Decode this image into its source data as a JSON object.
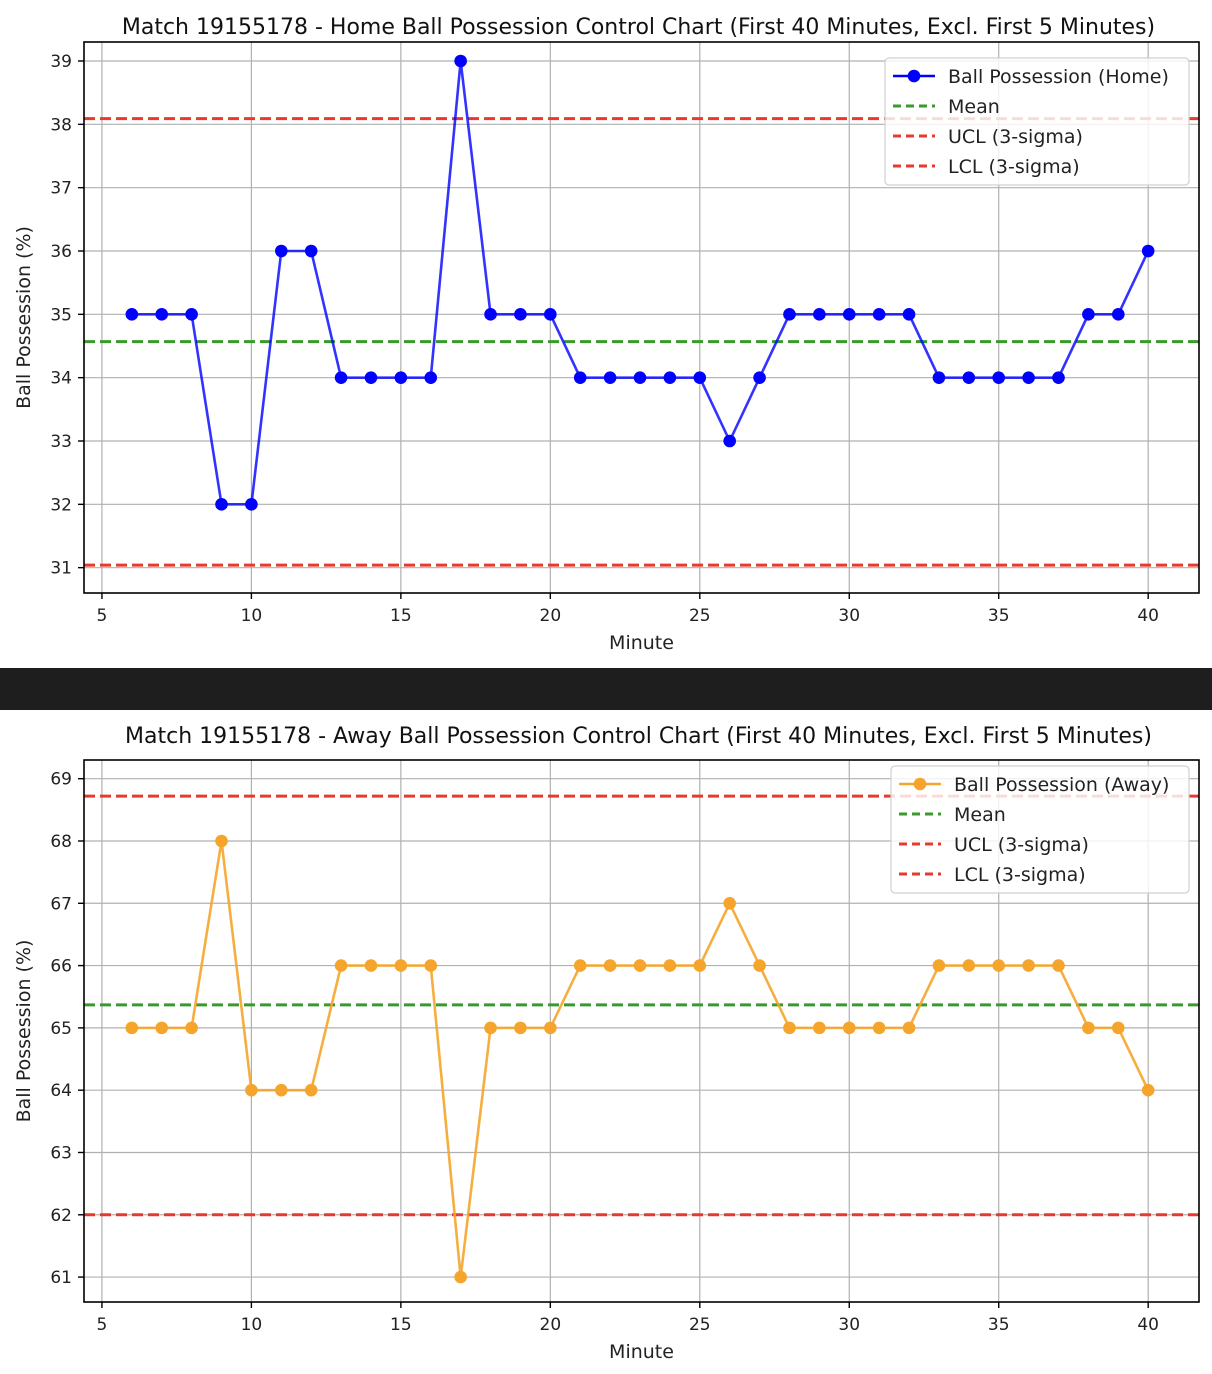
{
  "chart_data": [
    {
      "type": "line",
      "title": "Match 19155178 - Home Ball Possession Control Chart (First 40 Minutes, Excl. First 5 Minutes)",
      "xlabel": "Minute",
      "ylabel": "Ball Possession (%)",
      "xlim": [
        4.4,
        41.7
      ],
      "ylim": [
        30.6,
        39.3
      ],
      "xticks": [
        5,
        10,
        15,
        20,
        25,
        30,
        35,
        40
      ],
      "yticks": [
        31,
        32,
        33,
        34,
        35,
        36,
        37,
        38,
        39
      ],
      "grid": true,
      "legend_position": "top-right",
      "x": [
        6,
        7,
        8,
        9,
        10,
        11,
        12,
        13,
        14,
        15,
        16,
        17,
        18,
        19,
        20,
        21,
        22,
        23,
        24,
        25,
        26,
        27,
        28,
        29,
        30,
        31,
        32,
        33,
        34,
        35,
        36,
        37,
        38,
        39,
        40
      ],
      "series": [
        {
          "name": "Ball Possession (Home)",
          "color": "#0000ff",
          "marker": "circle",
          "values": [
            35,
            35,
            35,
            32,
            32,
            36,
            36,
            34,
            34,
            34,
            34,
            39,
            35,
            35,
            35,
            34,
            34,
            34,
            34,
            34,
            33,
            34,
            35,
            35,
            35,
            35,
            35,
            34,
            34,
            34,
            34,
            34,
            35,
            35,
            36
          ]
        }
      ],
      "reference_lines": [
        {
          "name": "Mean",
          "value": 34.57,
          "color": "#3a9a2c",
          "style": "dashed"
        },
        {
          "name": "UCL (3-sigma)",
          "value": 38.09,
          "color": "#e8392e",
          "style": "dashed"
        },
        {
          "name": "LCL (3-sigma)",
          "value": 31.04,
          "color": "#e8392e",
          "style": "dashed"
        }
      ]
    },
    {
      "type": "line",
      "title": "Match 19155178 - Away Ball Possession Control Chart (First 40 Minutes, Excl. First 5 Minutes)",
      "xlabel": "Minute",
      "ylabel": "Ball Possession (%)",
      "xlim": [
        4.4,
        41.7
      ],
      "ylim": [
        60.6,
        69.3
      ],
      "xticks": [
        5,
        10,
        15,
        20,
        25,
        30,
        35,
        40
      ],
      "yticks": [
        61,
        62,
        63,
        64,
        65,
        66,
        67,
        68,
        69
      ],
      "grid": true,
      "legend_position": "top-right",
      "x": [
        6,
        7,
        8,
        9,
        10,
        11,
        12,
        13,
        14,
        15,
        16,
        17,
        18,
        19,
        20,
        21,
        22,
        23,
        24,
        25,
        26,
        27,
        28,
        29,
        30,
        31,
        32,
        33,
        34,
        35,
        36,
        37,
        38,
        39,
        40
      ],
      "series": [
        {
          "name": "Ball Possession (Away)",
          "color": "#f5a52b",
          "marker": "circle",
          "values": [
            65,
            65,
            65,
            68,
            64,
            64,
            64,
            66,
            66,
            66,
            66,
            61,
            65,
            65,
            65,
            66,
            66,
            66,
            66,
            66,
            67,
            66,
            65,
            65,
            65,
            65,
            65,
            66,
            66,
            66,
            66,
            66,
            65,
            65,
            64
          ]
        }
      ],
      "reference_lines": [
        {
          "name": "Mean",
          "value": 65.37,
          "color": "#3a9a2c",
          "style": "dashed"
        },
        {
          "name": "UCL (3-sigma)",
          "value": 68.72,
          "color": "#e8392e",
          "style": "dashed"
        },
        {
          "name": "LCL (3-sigma)",
          "value": 62.0,
          "color": "#e8392e",
          "style": "dashed"
        }
      ]
    }
  ]
}
